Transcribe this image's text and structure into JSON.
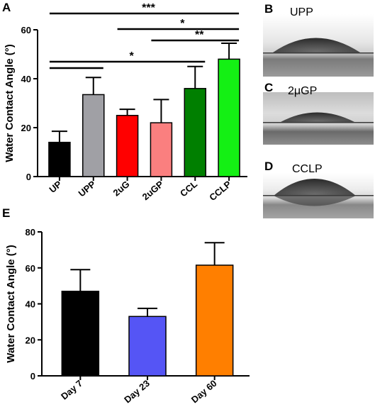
{
  "panel_letters": {
    "A": "A",
    "B": "B",
    "C": "C",
    "D": "D",
    "E": "E"
  },
  "photos": [
    {
      "label": "UPP"
    },
    {
      "label": "2μGP"
    },
    {
      "label": "CCLP"
    }
  ],
  "chart_data": [
    {
      "type": "bar",
      "panel": "A",
      "ylabel": "Water Contact Angle (°)",
      "xlabel": "",
      "ylim": [
        0,
        60
      ],
      "yticks": [
        0,
        20,
        40,
        60
      ],
      "categories": [
        "UP",
        "UPP",
        "2uG",
        "2uGP",
        "CCL",
        "CCLP"
      ],
      "values": [
        14,
        33.5,
        25,
        22,
        36,
        48
      ],
      "errors": [
        4.5,
        7,
        2.5,
        9.5,
        9,
        6.5
      ],
      "colors": [
        "#000000",
        "#a0a0a5",
        "#ff0000",
        "#fa7f7f",
        "#007f00",
        "#14f014"
      ],
      "significance": [
        {
          "from": 0,
          "to": 5,
          "label": "***"
        },
        {
          "from": 2,
          "to": 5,
          "label": "*"
        },
        {
          "from": 3,
          "to": 5,
          "label": "**"
        },
        {
          "from": 0,
          "to": 4,
          "label": "*"
        },
        {
          "from": 0,
          "to": 1,
          "label": ""
        }
      ],
      "grid": false
    },
    {
      "type": "bar",
      "panel": "E",
      "ylabel": "Water Contact Angle (°)",
      "xlabel": "",
      "ylim": [
        0,
        80
      ],
      "yticks": [
        0,
        20,
        40,
        60,
        80
      ],
      "categories": [
        "Day 7",
        "Day 23",
        "Day 60"
      ],
      "values": [
        47,
        33,
        61.5
      ],
      "errors": [
        12,
        4.5,
        12.5
      ],
      "colors": [
        "#000000",
        "#5555f5",
        "#ff7f00"
      ],
      "grid": false
    }
  ]
}
